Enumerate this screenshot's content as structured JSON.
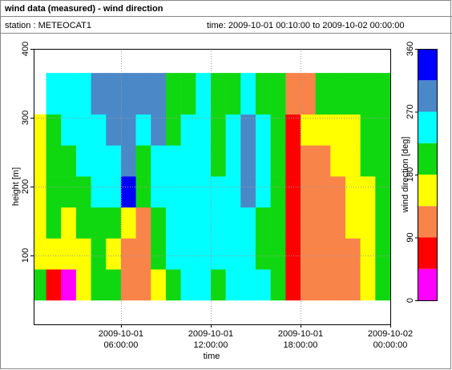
{
  "header": {
    "title": "wind data (measured) - wind direction",
    "station": "station : METEOCAT1",
    "time": "time: 2009-10-01 00:10:00 to 2009-10-02 00:00:00"
  },
  "chart_data": {
    "type": "heatmap",
    "xlabel": "time",
    "ylabel": "height [m]",
    "xlim": [
      "2009-10-01 00:10:00",
      "2009-10-02 00:00:00"
    ],
    "xticks": [
      "2009-10-01 06:00:00",
      "2009-10-01 12:00:00",
      "2009-10-01 18:00:00",
      "2009-10-02 00:00:00"
    ],
    "ylim": [
      0,
      400
    ],
    "yticks": [
      100,
      200,
      300,
      400
    ],
    "grid": true,
    "x_bins": [
      "2009-10-01 00:10:00",
      "2009-10-01 01:00:00",
      "2009-10-01 02:00:00",
      "2009-10-01 03:00:00",
      "2009-10-01 04:00:00",
      "2009-10-01 05:00:00",
      "2009-10-01 06:00:00",
      "2009-10-01 07:00:00",
      "2009-10-01 08:00:00",
      "2009-10-01 09:00:00",
      "2009-10-01 10:00:00",
      "2009-10-01 11:00:00",
      "2009-10-01 12:00:00",
      "2009-10-01 13:00:00",
      "2009-10-01 14:00:00",
      "2009-10-01 15:00:00",
      "2009-10-01 16:00:00",
      "2009-10-01 17:00:00",
      "2009-10-01 18:00:00",
      "2009-10-01 19:00:00",
      "2009-10-01 20:00:00",
      "2009-10-01 21:00:00",
      "2009-10-01 22:00:00",
      "2009-10-01 23:00:00",
      "2009-10-02 00:00:00"
    ],
    "y_bins": [
      35,
      80,
      125,
      170,
      215,
      260,
      305,
      365
    ],
    "values": [
      [
        202,
        157,
        157,
        157,
        157,
        157,
        null
      ],
      [
        67,
        157,
        202,
        202,
        202,
        202,
        247
      ],
      [
        22,
        157,
        157,
        202,
        202,
        247,
        247
      ],
      [
        157,
        157,
        202,
        202,
        247,
        247,
        247
      ],
      [
        202,
        202,
        202,
        247,
        247,
        247,
        292
      ],
      [
        202,
        157,
        202,
        247,
        247,
        292,
        292
      ],
      [
        112,
        112,
        157,
        337,
        292,
        292,
        292
      ],
      [
        112,
        112,
        112,
        202,
        202,
        247,
        292
      ],
      [
        157,
        202,
        202,
        247,
        247,
        292,
        292
      ],
      [
        202,
        247,
        247,
        247,
        247,
        202,
        202
      ],
      [
        247,
        247,
        247,
        247,
        247,
        247,
        202
      ],
      [
        247,
        247,
        247,
        247,
        247,
        247,
        247
      ],
      [
        202,
        247,
        247,
        247,
        202,
        202,
        202
      ],
      [
        247,
        247,
        247,
        247,
        247,
        247,
        202
      ],
      [
        247,
        247,
        247,
        292,
        292,
        292,
        247
      ],
      [
        247,
        202,
        202,
        247,
        247,
        247,
        202
      ],
      [
        202,
        202,
        202,
        202,
        202,
        202,
        202
      ],
      [
        67,
        67,
        67,
        67,
        67,
        67,
        112
      ],
      [
        112,
        112,
        112,
        112,
        112,
        157,
        112
      ],
      [
        112,
        112,
        112,
        112,
        112,
        157,
        202
      ],
      [
        112,
        112,
        112,
        112,
        157,
        157,
        202
      ],
      [
        112,
        112,
        157,
        157,
        157,
        157,
        202
      ],
      [
        157,
        157,
        157,
        157,
        202,
        202,
        202
      ],
      [
        202,
        202,
        202,
        202,
        202,
        202,
        202
      ]
    ],
    "colorbar": {
      "label": "wind direction [deg]",
      "lim": [
        0,
        360
      ],
      "ticks": [
        0,
        90,
        180,
        270,
        360
      ],
      "bins": [
        0,
        45,
        90,
        135,
        180,
        225,
        270,
        315,
        360
      ],
      "colors": [
        "#ff00ff",
        "#ff0000",
        "#f8844a",
        "#ffff00",
        "#10d810",
        "#00ffff",
        "#4a88c8",
        "#0000ff"
      ]
    }
  }
}
